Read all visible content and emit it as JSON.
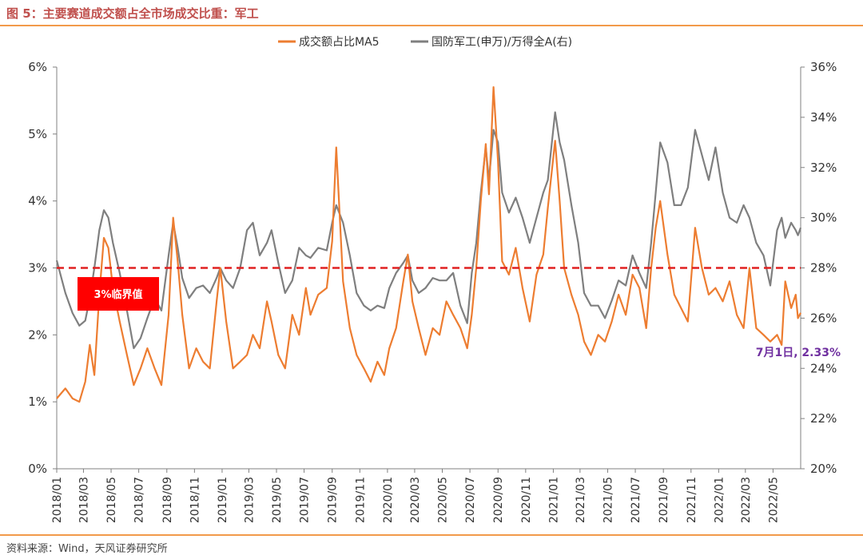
{
  "header": {
    "title": "图 5：主要赛道成交额占全市场成交比重：军工"
  },
  "footer": {
    "source": "资料来源：Wind，天风证券研究所"
  },
  "colors": {
    "orange": "#ed7d31",
    "gray": "#7f7f7f",
    "threshold": "#e02020",
    "badge": "#ff0000",
    "annotation": "#7030a0",
    "accent_rule": "#f29a4a"
  },
  "chart_data": {
    "type": "line",
    "title": "图 5：主要赛道成交额占全市场成交比重：军工",
    "legend_position": "top-center",
    "grid": false,
    "x_ticks": [
      "2018/01",
      "2018/03",
      "2018/05",
      "2018/07",
      "2018/09",
      "2018/11",
      "2019/01",
      "2019/03",
      "2019/05",
      "2019/07",
      "2019/09",
      "2019/11",
      "2020/01",
      "2020/03",
      "2020/05",
      "2020/07",
      "2020/09",
      "2020/11",
      "2021/01",
      "2021/03",
      "2021/05",
      "2021/07",
      "2021/09",
      "2021/11",
      "2022/01",
      "2022/03",
      "2022/05"
    ],
    "y_left": {
      "ticks": [
        "0%",
        "1%",
        "2%",
        "3%",
        "4%",
        "5%",
        "6%"
      ],
      "range": [
        0,
        6
      ]
    },
    "y_right": {
      "ticks": [
        "20%",
        "22%",
        "24%",
        "26%",
        "28%",
        "30%",
        "32%",
        "34%",
        "36%"
      ],
      "range": [
        20,
        36
      ]
    },
    "x_range": [
      "2018-01-01",
      "2022-07-01"
    ],
    "series": [
      {
        "name": "成交额占比MA5",
        "axis": "left",
        "color": "#ed7d31",
        "points": [
          [
            "2018-01-01",
            1.05
          ],
          [
            "2018-01-20",
            1.2
          ],
          [
            "2018-02-05",
            1.05
          ],
          [
            "2018-02-20",
            1.0
          ],
          [
            "2018-03-05",
            1.3
          ],
          [
            "2018-03-15",
            1.85
          ],
          [
            "2018-03-25",
            1.4
          ],
          [
            "2018-04-05",
            2.6
          ],
          [
            "2018-04-15",
            3.45
          ],
          [
            "2018-04-25",
            3.3
          ],
          [
            "2018-05-05",
            2.7
          ],
          [
            "2018-05-20",
            2.2
          ],
          [
            "2018-06-05",
            1.7
          ],
          [
            "2018-06-20",
            1.25
          ],
          [
            "2018-07-05",
            1.5
          ],
          [
            "2018-07-20",
            1.8
          ],
          [
            "2018-08-05",
            1.5
          ],
          [
            "2018-08-20",
            1.25
          ],
          [
            "2018-09-05",
            2.3
          ],
          [
            "2018-09-15",
            3.75
          ],
          [
            "2018-09-25",
            3.1
          ],
          [
            "2018-10-05",
            2.3
          ],
          [
            "2018-10-20",
            1.5
          ],
          [
            "2018-11-05",
            1.8
          ],
          [
            "2018-11-20",
            1.6
          ],
          [
            "2018-12-05",
            1.5
          ],
          [
            "2018-12-20",
            2.5
          ],
          [
            "2018-12-28",
            3.0
          ],
          [
            "2019-01-10",
            2.2
          ],
          [
            "2019-01-25",
            1.5
          ],
          [
            "2019-02-10",
            1.6
          ],
          [
            "2019-02-25",
            1.7
          ],
          [
            "2019-03-10",
            2.0
          ],
          [
            "2019-03-25",
            1.8
          ],
          [
            "2019-04-10",
            2.5
          ],
          [
            "2019-04-20",
            2.2
          ],
          [
            "2019-05-05",
            1.7
          ],
          [
            "2019-05-20",
            1.5
          ],
          [
            "2019-06-05",
            2.3
          ],
          [
            "2019-06-20",
            2.0
          ],
          [
            "2019-07-05",
            2.7
          ],
          [
            "2019-07-15",
            2.3
          ],
          [
            "2019-08-01",
            2.6
          ],
          [
            "2019-08-20",
            2.7
          ],
          [
            "2019-09-01",
            3.4
          ],
          [
            "2019-09-10",
            4.8
          ],
          [
            "2019-09-25",
            2.8
          ],
          [
            "2019-10-10",
            2.1
          ],
          [
            "2019-10-25",
            1.7
          ],
          [
            "2019-11-10",
            1.5
          ],
          [
            "2019-11-25",
            1.3
          ],
          [
            "2019-12-10",
            1.6
          ],
          [
            "2019-12-25",
            1.4
          ],
          [
            "2020-01-05",
            1.8
          ],
          [
            "2020-01-20",
            2.1
          ],
          [
            "2020-02-05",
            2.8
          ],
          [
            "2020-02-15",
            3.2
          ],
          [
            "2020-02-25",
            2.5
          ],
          [
            "2020-03-10",
            2.1
          ],
          [
            "2020-03-25",
            1.7
          ],
          [
            "2020-04-10",
            2.1
          ],
          [
            "2020-04-25",
            2.0
          ],
          [
            "2020-05-10",
            2.5
          ],
          [
            "2020-05-25",
            2.3
          ],
          [
            "2020-06-10",
            2.1
          ],
          [
            "2020-06-25",
            1.8
          ],
          [
            "2020-07-05",
            2.3
          ],
          [
            "2020-07-15",
            3.0
          ],
          [
            "2020-07-25",
            4.0
          ],
          [
            "2020-08-05",
            4.85
          ],
          [
            "2020-08-12",
            4.1
          ],
          [
            "2020-08-22",
            5.7
          ],
          [
            "2020-09-01",
            4.6
          ],
          [
            "2020-09-10",
            3.1
          ],
          [
            "2020-09-25",
            2.9
          ],
          [
            "2020-10-10",
            3.3
          ],
          [
            "2020-10-25",
            2.7
          ],
          [
            "2020-11-10",
            2.2
          ],
          [
            "2020-11-25",
            2.9
          ],
          [
            "2020-12-10",
            3.2
          ],
          [
            "2020-12-20",
            3.9
          ],
          [
            "2021-01-05",
            4.9
          ],
          [
            "2021-01-15",
            4.0
          ],
          [
            "2021-01-25",
            3.0
          ],
          [
            "2021-02-10",
            2.6
          ],
          [
            "2021-02-25",
            2.3
          ],
          [
            "2021-03-10",
            1.9
          ],
          [
            "2021-03-25",
            1.7
          ],
          [
            "2021-04-10",
            2.0
          ],
          [
            "2021-04-25",
            1.9
          ],
          [
            "2021-05-10",
            2.2
          ],
          [
            "2021-05-25",
            2.6
          ],
          [
            "2021-06-10",
            2.3
          ],
          [
            "2021-06-25",
            2.9
          ],
          [
            "2021-07-10",
            2.7
          ],
          [
            "2021-07-25",
            2.1
          ],
          [
            "2021-08-05",
            3.0
          ],
          [
            "2021-08-15",
            3.6
          ],
          [
            "2021-08-25",
            4.0
          ],
          [
            "2021-09-10",
            3.2
          ],
          [
            "2021-09-25",
            2.6
          ],
          [
            "2021-10-10",
            2.4
          ],
          [
            "2021-10-25",
            2.2
          ],
          [
            "2021-11-10",
            3.6
          ],
          [
            "2021-11-25",
            3.0
          ],
          [
            "2021-12-10",
            2.6
          ],
          [
            "2021-12-25",
            2.7
          ],
          [
            "2022-01-10",
            2.5
          ],
          [
            "2022-01-25",
            2.8
          ],
          [
            "2022-02-10",
            2.3
          ],
          [
            "2022-02-25",
            2.1
          ],
          [
            "2022-03-10",
            3.0
          ],
          [
            "2022-03-25",
            2.1
          ],
          [
            "2022-04-10",
            2.0
          ],
          [
            "2022-04-25",
            1.9
          ],
          [
            "2022-05-10",
            2.0
          ],
          [
            "2022-05-20",
            1.85
          ],
          [
            "2022-05-28",
            2.8
          ],
          [
            "2022-06-10",
            2.4
          ],
          [
            "2022-06-20",
            2.6
          ],
          [
            "2022-06-25",
            2.25
          ],
          [
            "2022-07-01",
            2.33
          ]
        ]
      },
      {
        "name": "国防军工(申万)/万得全A(右)",
        "axis": "right",
        "color": "#7f7f7f",
        "points": [
          [
            "2018-01-01",
            28.3
          ],
          [
            "2018-01-20",
            27.0
          ],
          [
            "2018-02-05",
            26.2
          ],
          [
            "2018-02-20",
            25.7
          ],
          [
            "2018-03-05",
            25.9
          ],
          [
            "2018-03-15",
            26.8
          ],
          [
            "2018-03-25",
            28.0
          ],
          [
            "2018-04-05",
            29.5
          ],
          [
            "2018-04-15",
            30.3
          ],
          [
            "2018-04-25",
            30.0
          ],
          [
            "2018-05-05",
            29.0
          ],
          [
            "2018-05-20",
            27.8
          ],
          [
            "2018-06-05",
            26.3
          ],
          [
            "2018-06-20",
            24.8
          ],
          [
            "2018-07-05",
            25.2
          ],
          [
            "2018-07-20",
            26.0
          ],
          [
            "2018-08-05",
            26.8
          ],
          [
            "2018-08-20",
            26.3
          ],
          [
            "2018-09-05",
            28.5
          ],
          [
            "2018-09-15",
            29.8
          ],
          [
            "2018-09-25",
            28.8
          ],
          [
            "2018-10-05",
            27.6
          ],
          [
            "2018-10-20",
            26.8
          ],
          [
            "2018-11-05",
            27.2
          ],
          [
            "2018-11-20",
            27.3
          ],
          [
            "2018-12-05",
            27.0
          ],
          [
            "2018-12-20",
            27.6
          ],
          [
            "2018-12-28",
            28.0
          ],
          [
            "2019-01-10",
            27.5
          ],
          [
            "2019-01-25",
            27.2
          ],
          [
            "2019-02-10",
            28.0
          ],
          [
            "2019-02-25",
            29.5
          ],
          [
            "2019-03-10",
            29.8
          ],
          [
            "2019-03-25",
            28.5
          ],
          [
            "2019-04-10",
            29.0
          ],
          [
            "2019-04-20",
            29.5
          ],
          [
            "2019-05-05",
            28.2
          ],
          [
            "2019-05-20",
            27.0
          ],
          [
            "2019-06-05",
            27.5
          ],
          [
            "2019-06-20",
            28.8
          ],
          [
            "2019-07-05",
            28.5
          ],
          [
            "2019-07-15",
            28.4
          ],
          [
            "2019-08-01",
            28.8
          ],
          [
            "2019-08-20",
            28.7
          ],
          [
            "2019-09-01",
            29.8
          ],
          [
            "2019-09-10",
            30.5
          ],
          [
            "2019-09-25",
            29.8
          ],
          [
            "2019-10-10",
            28.5
          ],
          [
            "2019-10-25",
            27.0
          ],
          [
            "2019-11-10",
            26.5
          ],
          [
            "2019-11-25",
            26.3
          ],
          [
            "2019-12-10",
            26.5
          ],
          [
            "2019-12-25",
            26.4
          ],
          [
            "2020-01-05",
            27.2
          ],
          [
            "2020-01-20",
            27.8
          ],
          [
            "2020-02-05",
            28.2
          ],
          [
            "2020-02-15",
            28.5
          ],
          [
            "2020-02-25",
            27.5
          ],
          [
            "2020-03-10",
            27.0
          ],
          [
            "2020-03-25",
            27.2
          ],
          [
            "2020-04-10",
            27.6
          ],
          [
            "2020-04-25",
            27.5
          ],
          [
            "2020-05-10",
            27.5
          ],
          [
            "2020-05-25",
            27.8
          ],
          [
            "2020-06-10",
            26.5
          ],
          [
            "2020-06-25",
            25.8
          ],
          [
            "2020-07-05",
            27.8
          ],
          [
            "2020-07-15",
            29.0
          ],
          [
            "2020-07-25",
            31.0
          ],
          [
            "2020-08-05",
            32.8
          ],
          [
            "2020-08-12",
            31.5
          ],
          [
            "2020-08-22",
            33.5
          ],
          [
            "2020-09-01",
            33.0
          ],
          [
            "2020-09-10",
            31.0
          ],
          [
            "2020-09-25",
            30.2
          ],
          [
            "2020-10-10",
            30.8
          ],
          [
            "2020-10-25",
            30.0
          ],
          [
            "2020-11-10",
            29.0
          ],
          [
            "2020-11-25",
            30.0
          ],
          [
            "2020-12-10",
            31.0
          ],
          [
            "2020-12-20",
            31.5
          ],
          [
            "2021-01-05",
            34.2
          ],
          [
            "2021-01-15",
            33.0
          ],
          [
            "2021-01-25",
            32.3
          ],
          [
            "2021-02-10",
            30.5
          ],
          [
            "2021-02-25",
            29.0
          ],
          [
            "2021-03-10",
            27.0
          ],
          [
            "2021-03-25",
            26.5
          ],
          [
            "2021-04-10",
            26.5
          ],
          [
            "2021-04-25",
            26.0
          ],
          [
            "2021-05-10",
            26.7
          ],
          [
            "2021-05-25",
            27.5
          ],
          [
            "2021-06-10",
            27.3
          ],
          [
            "2021-06-25",
            28.5
          ],
          [
            "2021-07-10",
            27.8
          ],
          [
            "2021-07-25",
            27.2
          ],
          [
            "2021-08-05",
            29.0
          ],
          [
            "2021-08-15",
            31.0
          ],
          [
            "2021-08-25",
            33.0
          ],
          [
            "2021-09-10",
            32.2
          ],
          [
            "2021-09-25",
            30.5
          ],
          [
            "2021-10-10",
            30.5
          ],
          [
            "2021-10-25",
            31.2
          ],
          [
            "2021-11-10",
            33.5
          ],
          [
            "2021-11-25",
            32.5
          ],
          [
            "2021-12-10",
            31.5
          ],
          [
            "2021-12-25",
            32.8
          ],
          [
            "2022-01-10",
            31.0
          ],
          [
            "2022-01-25",
            30.0
          ],
          [
            "2022-02-10",
            29.8
          ],
          [
            "2022-02-25",
            30.5
          ],
          [
            "2022-03-10",
            30.0
          ],
          [
            "2022-03-25",
            29.0
          ],
          [
            "2022-04-10",
            28.5
          ],
          [
            "2022-04-25",
            27.3
          ],
          [
            "2022-05-10",
            29.5
          ],
          [
            "2022-05-20",
            30.0
          ],
          [
            "2022-05-28",
            29.2
          ],
          [
            "2022-06-10",
            29.8
          ],
          [
            "2022-06-20",
            29.5
          ],
          [
            "2022-06-25",
            29.3
          ],
          [
            "2022-07-01",
            29.6
          ]
        ]
      }
    ],
    "threshold": {
      "value": 3,
      "axis": "left",
      "label": "3%临界值",
      "style": "dashed"
    },
    "annotation": {
      "text": "7月1日, 2.33%",
      "x": "2022-07-01",
      "y": 2.33
    }
  }
}
